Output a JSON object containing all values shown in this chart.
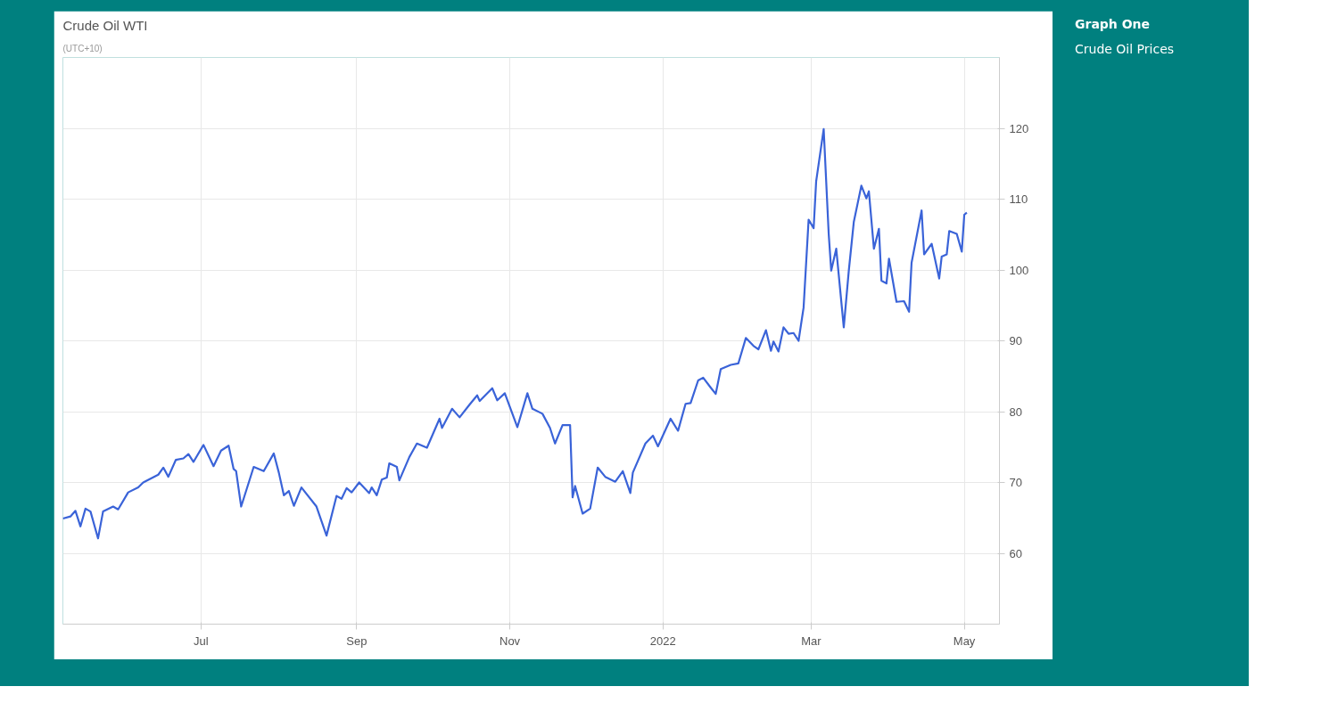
{
  "chart_data": {
    "type": "line",
    "title": "Crude Oil WTI",
    "subtitle": "(UTC+10)",
    "annotations": [
      "Graph One",
      "Crude Oil Prices"
    ],
    "x": [
      "2021-05-07",
      "2021-05-10",
      "2021-05-12",
      "2021-05-14",
      "2021-05-16",
      "2021-05-18",
      "2021-05-21",
      "2021-05-23",
      "2021-05-27",
      "2021-05-29",
      "2021-06-02",
      "2021-06-06",
      "2021-06-08",
      "2021-06-14",
      "2021-06-16",
      "2021-06-18",
      "2021-06-21",
      "2021-06-24",
      "2021-06-26",
      "2021-06-28",
      "2021-07-02",
      "2021-07-06",
      "2021-07-09",
      "2021-07-12",
      "2021-07-14",
      "2021-07-15",
      "2021-07-17",
      "2021-07-22",
      "2021-07-26",
      "2021-07-30",
      "2021-08-01",
      "2021-08-03",
      "2021-08-05",
      "2021-08-07",
      "2021-08-10",
      "2021-08-16",
      "2021-08-20",
      "2021-08-24",
      "2021-08-26",
      "2021-08-28",
      "2021-08-30",
      "2021-09-02",
      "2021-09-06",
      "2021-09-07",
      "2021-09-09",
      "2021-09-11",
      "2021-09-13",
      "2021-09-14",
      "2021-09-17",
      "2021-09-18",
      "2021-09-22",
      "2021-09-25",
      "2021-09-29",
      "2021-10-04",
      "2021-10-05",
      "2021-10-09",
      "2021-10-12",
      "2021-10-16",
      "2021-10-19",
      "2021-10-20",
      "2021-10-25",
      "2021-10-27",
      "2021-10-30",
      "2021-11-04",
      "2021-11-08",
      "2021-11-10",
      "2021-11-14",
      "2021-11-17",
      "2021-11-19",
      "2021-11-22",
      "2021-11-25",
      "2021-11-26",
      "2021-11-27",
      "2021-11-30",
      "2021-12-03",
      "2021-12-06",
      "2021-12-09",
      "2021-12-13",
      "2021-12-16",
      "2021-12-19",
      "2021-12-20",
      "2021-12-25",
      "2021-12-28",
      "2021-12-30",
      "2022-01-04",
      "2022-01-07",
      "2022-01-10",
      "2022-01-12",
      "2022-01-15",
      "2022-01-17",
      "2022-01-20",
      "2022-01-22",
      "2022-01-24",
      "2022-01-28",
      "2022-01-31",
      "2022-02-03",
      "2022-02-06",
      "2022-02-08",
      "2022-02-11",
      "2022-02-13",
      "2022-02-14",
      "2022-02-16",
      "2022-02-18",
      "2022-02-20",
      "2022-02-22",
      "2022-02-24",
      "2022-02-26",
      "2022-02-28",
      "2022-03-02",
      "2022-03-03",
      "2022-03-06",
      "2022-03-08",
      "2022-03-09",
      "2022-03-11",
      "2022-03-14",
      "2022-03-16",
      "2022-03-18",
      "2022-03-21",
      "2022-03-23",
      "2022-03-24",
      "2022-03-26",
      "2022-03-28",
      "2022-03-29",
      "2022-03-31",
      "2022-04-01",
      "2022-04-04",
      "2022-04-07",
      "2022-04-09",
      "2022-04-10",
      "2022-04-14",
      "2022-04-15",
      "2022-04-18",
      "2022-04-21",
      "2022-04-22",
      "2022-04-24",
      "2022-04-25",
      "2022-04-28",
      "2022-04-30",
      "2022-05-01",
      "2022-05-02"
    ],
    "series": [
      {
        "color": "#3a63d8",
        "values": [
          64.9,
          65.2,
          66.0,
          63.8,
          66.3,
          65.9,
          62.1,
          65.9,
          66.6,
          66.2,
          68.6,
          69.3,
          70.0,
          71.1,
          72.1,
          70.8,
          73.2,
          73.4,
          74.0,
          72.9,
          75.3,
          72.3,
          74.5,
          75.2,
          71.9,
          71.6,
          66.6,
          72.2,
          71.6,
          74.1,
          71.4,
          68.2,
          68.8,
          66.7,
          69.3,
          66.6,
          62.5,
          68.1,
          67.7,
          69.2,
          68.6,
          70.0,
          68.5,
          69.3,
          68.2,
          70.4,
          70.7,
          72.7,
          72.2,
          70.3,
          73.6,
          75.5,
          74.9,
          79.0,
          77.7,
          80.4,
          79.2,
          81.0,
          82.3,
          81.5,
          83.3,
          81.6,
          82.6,
          77.8,
          82.6,
          80.4,
          79.7,
          77.7,
          75.5,
          78.1,
          78.1,
          67.9,
          69.5,
          65.6,
          66.3,
          72.1,
          70.8,
          70.1,
          71.6,
          68.5,
          71.4,
          75.5,
          76.6,
          75.1,
          79.0,
          77.3,
          81.1,
          81.2,
          84.4,
          84.8,
          83.4,
          82.5,
          86.0,
          86.6,
          86.8,
          90.4,
          89.3,
          88.8,
          91.5,
          88.6,
          89.9,
          88.5,
          91.9,
          91.0,
          91.1,
          90.0,
          94.7,
          107.1,
          105.9,
          112.5,
          119.9,
          105.1,
          99.9,
          103.0,
          91.9,
          99.9,
          106.8,
          111.9,
          110.1,
          111.1,
          103.0,
          105.8,
          98.5,
          98.1,
          101.6,
          95.5,
          95.6,
          94.1,
          101.0,
          108.4,
          102.2,
          103.7,
          98.8,
          101.9,
          102.2,
          105.5,
          105.1,
          102.6,
          107.8,
          108.1
        ]
      }
    ],
    "xlim": [
      "2021-05-07",
      "2022-05-15"
    ],
    "xticks": [
      {
        "value": "2021-07-01",
        "label": "Jul"
      },
      {
        "value": "2021-09-01",
        "label": "Sep"
      },
      {
        "value": "2021-11-01",
        "label": "Nov"
      },
      {
        "value": "2022-01-01",
        "label": "2022"
      },
      {
        "value": "2022-03-01",
        "label": "Mar"
      },
      {
        "value": "2022-05-01",
        "label": "May"
      }
    ],
    "ylim": [
      50,
      130
    ],
    "yticks": [
      60,
      70,
      80,
      90,
      100,
      110,
      120
    ],
    "grid": true,
    "marker": "none",
    "line_style": "solid"
  }
}
